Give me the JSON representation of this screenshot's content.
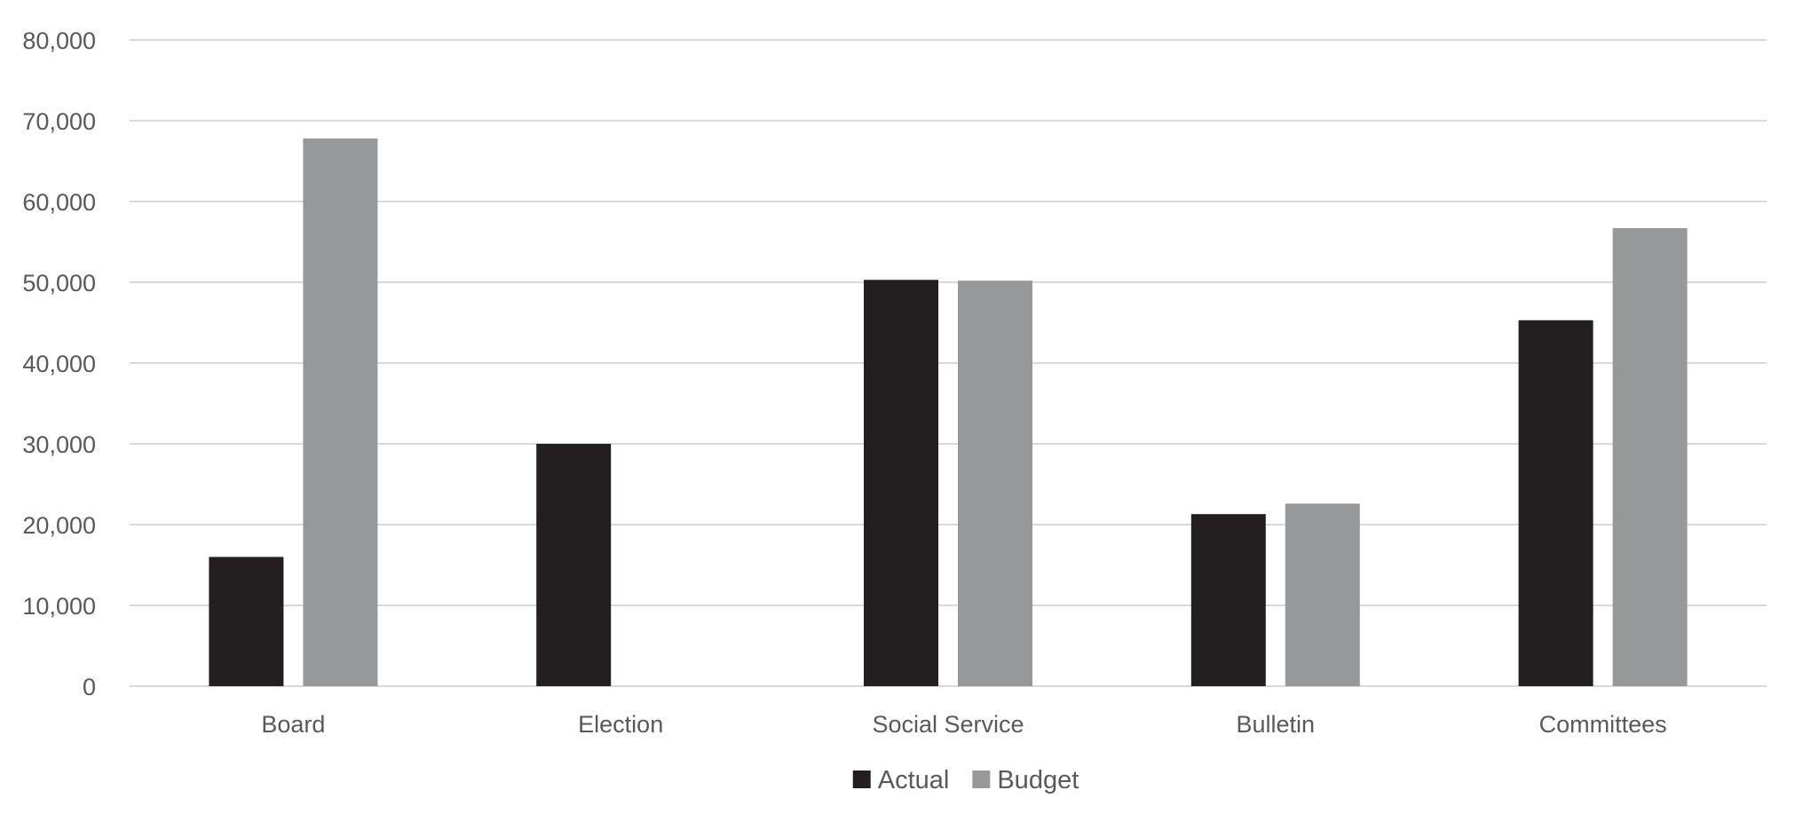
{
  "chart_data": {
    "type": "bar",
    "title": "",
    "xlabel": "",
    "ylabel": "",
    "categories": [
      "Board",
      "Election",
      "Social Service",
      "Bulletin",
      "Committees"
    ],
    "series": [
      {
        "name": "Actual",
        "color": "#231f20",
        "values": [
          16000,
          30000,
          50300,
          21300,
          45300
        ]
      },
      {
        "name": "Budget",
        "color": "#97989a",
        "values": [
          67800,
          0,
          50200,
          22600,
          56700
        ]
      }
    ],
    "ylim": [
      0,
      80000
    ],
    "yticks": [
      0,
      10000,
      20000,
      30000,
      40000,
      50000,
      60000,
      70000,
      80000
    ],
    "ytick_labels": [
      "0",
      "10,000",
      "20,000",
      "30,000",
      "40,000",
      "50,000",
      "60,000",
      "70,000",
      "80,000"
    ],
    "grid": true,
    "legend_position": "bottom"
  }
}
